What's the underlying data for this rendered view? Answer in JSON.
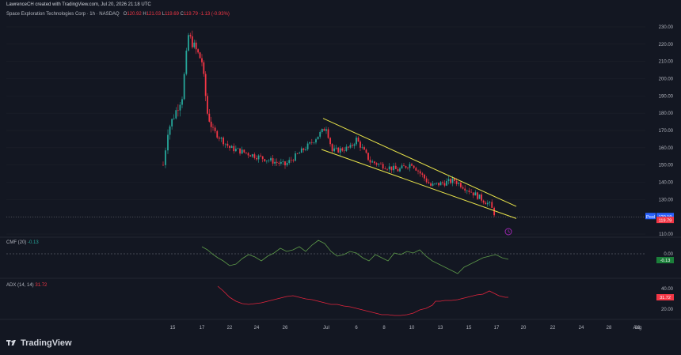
{
  "header": {
    "credit": "LawrenceCH created with TradingView.com, Jul 20, 2026 21:18 UTC",
    "symbol": "Space Exploration Technologies Corp · 1h · NASDAQ",
    "open_label": "O",
    "open": "120.92",
    "high_label": "H",
    "high": "121.03",
    "low_label": "L",
    "low": "119.69",
    "close_label": "C",
    "close": "119.79",
    "change": "-1.13 (-0.93%)"
  },
  "brand": {
    "name": "TradingView"
  },
  "colors": {
    "background": "#131722",
    "up": "#26a69a",
    "down": "#f23645",
    "channel": "#e8e34a",
    "cmf_line": "#5d9a49",
    "adx_line": "#e0243c",
    "text": "#d1d4dc",
    "grid": "#1e222d"
  },
  "icons": {
    "brand": "tradingview-logo-icon",
    "alert": "clock-icon"
  },
  "chart_data": {
    "type": "candlestick",
    "title": "Space Exploration Technologies Corp · 1h · NASDAQ",
    "price_axis": {
      "ticks": [
        "230.00",
        "220.00",
        "210.00",
        "200.00",
        "190.00",
        "180.00",
        "170.00",
        "160.00",
        "150.00",
        "140.00",
        "130.00",
        "120.00",
        "110.00"
      ],
      "range": [
        105,
        235
      ]
    },
    "time_axis": {
      "ticks": [
        "15",
        "17",
        "22",
        "24",
        "26",
        "Jul",
        "6",
        "8",
        "10",
        "13",
        "15",
        "17",
        "20",
        "22",
        "24",
        "28",
        "30",
        "Aug"
      ]
    },
    "series_keypoints": [
      {
        "date": "Jun 15",
        "close": 150
      },
      {
        "date": "Jun 15",
        "close": 170
      },
      {
        "date": "Jun 16",
        "close": 190
      },
      {
        "date": "Jun 16",
        "close": 225
      },
      {
        "date": "Jun 17",
        "close": 210
      },
      {
        "date": "Jun 18",
        "close": 180
      },
      {
        "date": "Jun 19",
        "close": 170
      },
      {
        "date": "Jun 22",
        "close": 160
      },
      {
        "date": "Jun 24",
        "close": 155
      },
      {
        "date": "Jun 26",
        "close": 150
      },
      {
        "date": "Jun 29",
        "close": 162
      },
      {
        "date": "Jul 1",
        "close": 172
      },
      {
        "date": "Jul 2",
        "close": 158
      },
      {
        "date": "Jul 5",
        "close": 160
      },
      {
        "date": "Jul 6",
        "close": 165
      },
      {
        "date": "Jul 7",
        "close": 152
      },
      {
        "date": "Jul 9",
        "close": 147
      },
      {
        "date": "Jul 10",
        "close": 151
      },
      {
        "date": "Jul 12",
        "close": 138
      },
      {
        "date": "Jul 14",
        "close": 141
      },
      {
        "date": "Jul 16",
        "close": 132
      },
      {
        "date": "Jul 18",
        "close": 127
      },
      {
        "date": "Jul 20",
        "close": 119.79
      }
    ],
    "channel": {
      "upper": [
        {
          "date": "Jul 1",
          "price": 177
        },
        {
          "date": "Jul 21",
          "price": 126
        }
      ],
      "lower": [
        {
          "date": "Jul 1",
          "price": 159
        },
        {
          "date": "Jul 21",
          "price": 119
        }
      ]
    },
    "price_tags": [
      {
        "label": "Pool",
        "value": "120.19"
      },
      {
        "value": "119.79"
      }
    ],
    "indicators": [
      {
        "name": "CMF (20)",
        "value": "-0.13",
        "axis_ticks": [
          "0.00"
        ],
        "last_value_tag": "-0.13"
      },
      {
        "name": "ADX (14, 14)",
        "value": "31.72",
        "axis_ticks": [
          "40.00",
          "20.00"
        ],
        "last_value_tag": "31.72"
      }
    ]
  }
}
